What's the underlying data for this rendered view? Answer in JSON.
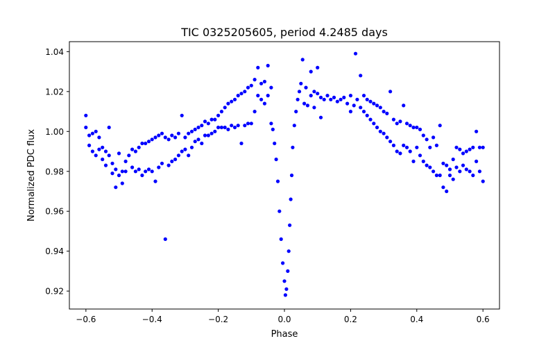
{
  "chart_data": {
    "type": "scatter",
    "title": "TIC 0325205605, period 4.2485 days",
    "xlabel": "Phase",
    "ylabel": "Normalized PDC flux",
    "xlim": [
      -0.65,
      0.65
    ],
    "ylim": [
      0.911,
      1.045
    ],
    "xticks": [
      -0.6,
      -0.4,
      -0.2,
      0.0,
      0.2,
      0.4,
      0.6
    ],
    "xtick_labels": [
      "−0.6",
      "−0.4",
      "−0.2",
      "0.0",
      "0.2",
      "0.4",
      "0.6"
    ],
    "yticks": [
      0.92,
      0.94,
      0.96,
      0.98,
      1.0,
      1.02,
      1.04
    ],
    "ytick_labels": [
      "0.92",
      "0.94",
      "0.96",
      "0.98",
      "1.00",
      "1.02",
      "1.04"
    ],
    "grid": false,
    "marker_color": "#0000ff",
    "series": [
      {
        "points": [
          [
            -0.6,
            1.008
          ],
          [
            -0.6,
            1.002
          ],
          [
            -0.59,
            0.998
          ],
          [
            -0.59,
            0.993
          ],
          [
            -0.58,
            0.999
          ],
          [
            -0.58,
            0.99
          ],
          [
            -0.57,
            1.0
          ],
          [
            -0.57,
            0.988
          ],
          [
            -0.56,
            0.997
          ],
          [
            -0.56,
            0.991
          ],
          [
            -0.55,
            0.992
          ],
          [
            -0.55,
            0.986
          ],
          [
            -0.54,
            0.99
          ],
          [
            -0.54,
            0.983
          ],
          [
            -0.53,
            1.002
          ],
          [
            -0.53,
            0.988
          ],
          [
            -0.52,
            0.984
          ],
          [
            -0.52,
            0.979
          ],
          [
            -0.51,
            0.981
          ],
          [
            -0.51,
            0.972
          ],
          [
            -0.5,
            0.989
          ],
          [
            -0.5,
            0.978
          ],
          [
            -0.49,
            0.98
          ],
          [
            -0.49,
            0.974
          ],
          [
            -0.48,
            0.985
          ],
          [
            -0.48,
            0.98
          ],
          [
            -0.47,
            0.988
          ],
          [
            -0.46,
            0.991
          ],
          [
            -0.46,
            0.982
          ],
          [
            -0.45,
            0.99
          ],
          [
            -0.45,
            0.98
          ],
          [
            -0.44,
            0.992
          ],
          [
            -0.44,
            0.981
          ],
          [
            -0.43,
            0.994
          ],
          [
            -0.43,
            0.978
          ],
          [
            -0.42,
            0.994
          ],
          [
            -0.42,
            0.98
          ],
          [
            -0.41,
            0.995
          ],
          [
            -0.41,
            0.981
          ],
          [
            -0.4,
            0.996
          ],
          [
            -0.4,
            0.98
          ],
          [
            -0.39,
            0.997
          ],
          [
            -0.39,
            0.975
          ],
          [
            -0.38,
            0.998
          ],
          [
            -0.38,
            0.982
          ],
          [
            -0.37,
            0.999
          ],
          [
            -0.37,
            0.984
          ],
          [
            -0.36,
            0.997
          ],
          [
            -0.36,
            0.946
          ],
          [
            -0.35,
            0.996
          ],
          [
            -0.35,
            0.983
          ],
          [
            -0.34,
            0.998
          ],
          [
            -0.34,
            0.985
          ],
          [
            -0.33,
            0.997
          ],
          [
            -0.33,
            0.986
          ],
          [
            -0.32,
            0.999
          ],
          [
            -0.32,
            0.988
          ],
          [
            -0.31,
            1.008
          ],
          [
            -0.31,
            0.99
          ],
          [
            -0.3,
            0.997
          ],
          [
            -0.3,
            0.991
          ],
          [
            -0.29,
            0.999
          ],
          [
            -0.29,
            0.988
          ],
          [
            -0.28,
            1.0
          ],
          [
            -0.28,
            0.992
          ],
          [
            -0.27,
            1.001
          ],
          [
            -0.27,
            0.995
          ],
          [
            -0.26,
            1.002
          ],
          [
            -0.26,
            0.996
          ],
          [
            -0.25,
            1.003
          ],
          [
            -0.25,
            0.994
          ],
          [
            -0.24,
            1.005
          ],
          [
            -0.24,
            0.998
          ],
          [
            -0.23,
            1.004
          ],
          [
            -0.23,
            0.998
          ],
          [
            -0.22,
            1.006
          ],
          [
            -0.22,
            0.999
          ],
          [
            -0.21,
            1.006
          ],
          [
            -0.21,
            1.0
          ],
          [
            -0.2,
            1.008
          ],
          [
            -0.2,
            1.002
          ],
          [
            -0.19,
            1.01
          ],
          [
            -0.19,
            1.002
          ],
          [
            -0.18,
            1.012
          ],
          [
            -0.18,
            1.002
          ],
          [
            -0.17,
            1.014
          ],
          [
            -0.17,
            1.001
          ],
          [
            -0.16,
            1.015
          ],
          [
            -0.16,
            1.003
          ],
          [
            -0.15,
            1.016
          ],
          [
            -0.15,
            1.002
          ],
          [
            -0.14,
            1.018
          ],
          [
            -0.14,
            1.003
          ],
          [
            -0.13,
            1.019
          ],
          [
            -0.13,
            0.994
          ],
          [
            -0.12,
            1.02
          ],
          [
            -0.12,
            1.003
          ],
          [
            -0.11,
            1.022
          ],
          [
            -0.11,
            1.004
          ],
          [
            -0.1,
            1.023
          ],
          [
            -0.1,
            1.004
          ],
          [
            -0.09,
            1.026
          ],
          [
            -0.09,
            1.01
          ],
          [
            -0.08,
            1.032
          ],
          [
            -0.08,
            1.018
          ],
          [
            -0.07,
            1.024
          ],
          [
            -0.07,
            1.016
          ],
          [
            -0.06,
            1.025
          ],
          [
            -0.06,
            1.014
          ],
          [
            -0.05,
            1.033
          ],
          [
            -0.05,
            1.018
          ],
          [
            -0.04,
            1.022
          ],
          [
            -0.04,
            1.004
          ],
          [
            -0.035,
            1.001
          ],
          [
            -0.03,
            0.994
          ],
          [
            -0.025,
            0.986
          ],
          [
            -0.02,
            0.975
          ],
          [
            -0.015,
            0.96
          ],
          [
            -0.01,
            0.946
          ],
          [
            -0.005,
            0.934
          ],
          [
            0.0,
            0.925
          ],
          [
            0.003,
            0.918
          ],
          [
            0.006,
            0.921
          ],
          [
            0.01,
            0.93
          ],
          [
            0.013,
            0.94
          ],
          [
            0.016,
            0.953
          ],
          [
            0.019,
            0.966
          ],
          [
            0.022,
            0.978
          ],
          [
            0.025,
            0.992
          ],
          [
            0.03,
            1.003
          ],
          [
            0.035,
            1.01
          ],
          [
            0.04,
            1.016
          ],
          [
            0.045,
            1.02
          ],
          [
            0.05,
            1.024
          ],
          [
            0.055,
            1.036
          ],
          [
            0.06,
            1.014
          ],
          [
            0.065,
            1.022
          ],
          [
            0.07,
            1.013
          ],
          [
            0.08,
            1.018
          ],
          [
            0.08,
            1.03
          ],
          [
            0.09,
            1.02
          ],
          [
            0.09,
            1.012
          ],
          [
            0.1,
            1.019
          ],
          [
            0.1,
            1.032
          ],
          [
            0.11,
            1.017
          ],
          [
            0.11,
            1.007
          ],
          [
            0.12,
            1.016
          ],
          [
            0.13,
            1.018
          ],
          [
            0.14,
            1.016
          ],
          [
            0.15,
            1.017
          ],
          [
            0.16,
            1.015
          ],
          [
            0.17,
            1.016
          ],
          [
            0.18,
            1.017
          ],
          [
            0.19,
            1.014
          ],
          [
            0.2,
            1.018
          ],
          [
            0.2,
            1.01
          ],
          [
            0.21,
            1.013
          ],
          [
            0.215,
            1.039
          ],
          [
            0.22,
            1.016
          ],
          [
            0.23,
            1.028
          ],
          [
            0.23,
            1.012
          ],
          [
            0.24,
            1.018
          ],
          [
            0.24,
            1.01
          ],
          [
            0.25,
            1.016
          ],
          [
            0.25,
            1.008
          ],
          [
            0.26,
            1.015
          ],
          [
            0.26,
            1.006
          ],
          [
            0.27,
            1.014
          ],
          [
            0.27,
            1.004
          ],
          [
            0.28,
            1.013
          ],
          [
            0.28,
            1.002
          ],
          [
            0.29,
            1.012
          ],
          [
            0.29,
            1.0
          ],
          [
            0.3,
            1.01
          ],
          [
            0.3,
            0.999
          ],
          [
            0.31,
            1.009
          ],
          [
            0.31,
            0.997
          ],
          [
            0.32,
            1.02
          ],
          [
            0.32,
            0.995
          ],
          [
            0.33,
            1.006
          ],
          [
            0.33,
            0.993
          ],
          [
            0.34,
            1.004
          ],
          [
            0.34,
            0.99
          ],
          [
            0.35,
            1.005
          ],
          [
            0.35,
            0.989
          ],
          [
            0.36,
            1.013
          ],
          [
            0.36,
            0.993
          ],
          [
            0.37,
            1.004
          ],
          [
            0.37,
            0.992
          ],
          [
            0.38,
            1.003
          ],
          [
            0.38,
            0.99
          ],
          [
            0.39,
            1.002
          ],
          [
            0.39,
            0.985
          ],
          [
            0.4,
            1.002
          ],
          [
            0.4,
            0.992
          ],
          [
            0.41,
            1.001
          ],
          [
            0.41,
            0.988
          ],
          [
            0.42,
            0.998
          ],
          [
            0.42,
            0.985
          ],
          [
            0.43,
            0.996
          ],
          [
            0.43,
            0.983
          ],
          [
            0.44,
            0.992
          ],
          [
            0.44,
            0.982
          ],
          [
            0.45,
            0.997
          ],
          [
            0.45,
            0.98
          ],
          [
            0.46,
            0.993
          ],
          [
            0.46,
            0.978
          ],
          [
            0.47,
            1.003
          ],
          [
            0.47,
            0.978
          ],
          [
            0.48,
            0.984
          ],
          [
            0.48,
            0.972
          ],
          [
            0.49,
            0.983
          ],
          [
            0.49,
            0.97
          ],
          [
            0.5,
            0.981
          ],
          [
            0.5,
            0.978
          ],
          [
            0.51,
            0.986
          ],
          [
            0.51,
            0.976
          ],
          [
            0.52,
            0.992
          ],
          [
            0.52,
            0.982
          ],
          [
            0.53,
            0.991
          ],
          [
            0.53,
            0.98
          ],
          [
            0.54,
            0.989
          ],
          [
            0.54,
            0.983
          ],
          [
            0.55,
            0.99
          ],
          [
            0.55,
            0.981
          ],
          [
            0.56,
            0.991
          ],
          [
            0.56,
            0.98
          ],
          [
            0.57,
            0.992
          ],
          [
            0.57,
            0.978
          ],
          [
            0.58,
            1.0
          ],
          [
            0.58,
            0.985
          ],
          [
            0.59,
            0.992
          ],
          [
            0.59,
            0.98
          ],
          [
            0.6,
            0.992
          ],
          [
            0.6,
            0.975
          ]
        ]
      }
    ]
  }
}
